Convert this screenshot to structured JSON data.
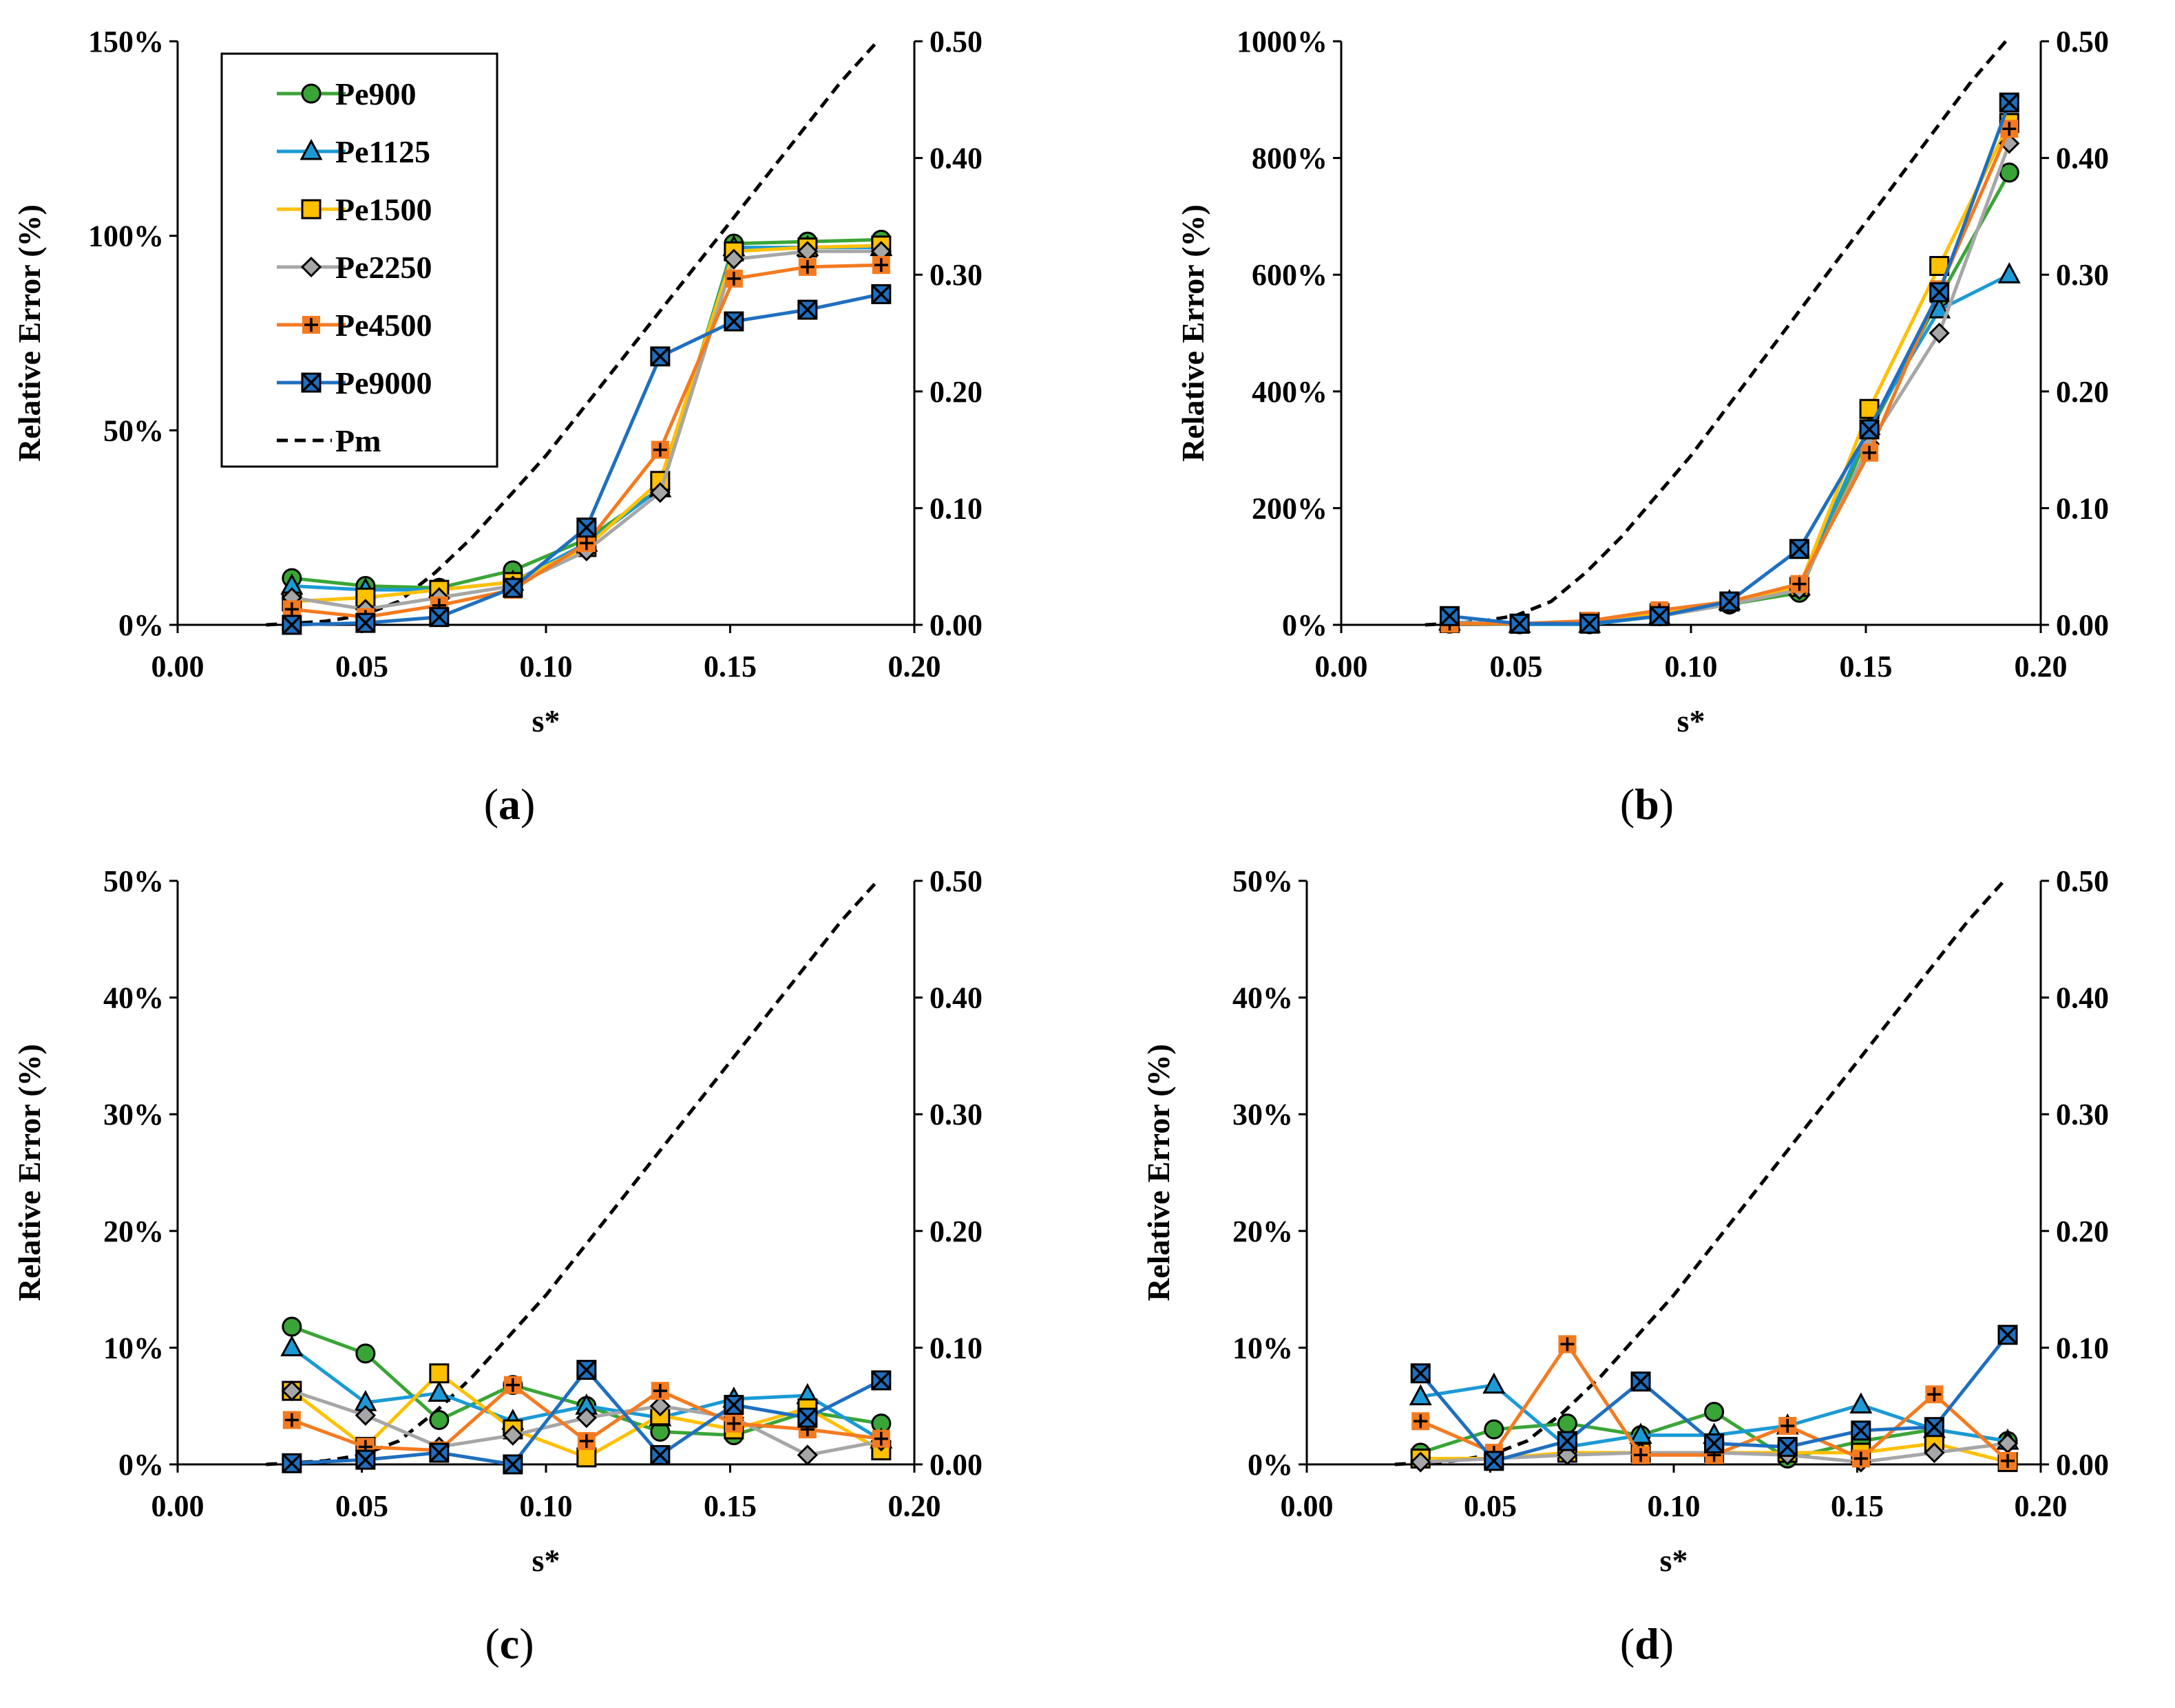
{
  "colors": {
    "Pe900": "#3aa537",
    "Pe1125": "#1b9ad6",
    "Pe1500": "#ffc000",
    "Pe2250": "#a6a6a6",
    "Pe4500": "#f47a20",
    "Pe9000": "#1f6fbf",
    "Pm": "#000000"
  },
  "legend": {
    "entries": [
      {
        "name": "Pe900",
        "marker": "circle"
      },
      {
        "name": "Pe1125",
        "marker": "triangle"
      },
      {
        "name": "Pe1500",
        "marker": "square"
      },
      {
        "name": "Pe2250",
        "marker": "diamond"
      },
      {
        "name": "Pe4500",
        "marker": "plus"
      },
      {
        "name": "Pe9000",
        "marker": "x-square"
      },
      {
        "name": "Pm",
        "marker": "dashed"
      }
    ]
  },
  "chart_data": [
    {
      "type": "line",
      "panel_label": "(a)",
      "xlabel": "s*",
      "ylabel": "Relative Error (%)",
      "xlim": [
        0.0,
        0.2
      ],
      "x_ticks": [
        "0.00",
        "0.05",
        "0.10",
        "0.15",
        "0.20"
      ],
      "ylim": [
        0,
        150
      ],
      "y_ticks": [
        "0%",
        "50%",
        "100%",
        "150%"
      ],
      "y2lim": [
        0,
        0.5
      ],
      "y2_ticks": [
        "0.00",
        "0.10",
        "0.20",
        "0.30",
        "0.40",
        "0.50"
      ],
      "x": [
        0.031,
        0.051,
        0.071,
        0.091,
        0.111,
        0.131,
        0.151,
        0.171,
        0.191
      ],
      "series": [
        {
          "name": "Pe900",
          "values": [
            12,
            10,
            9.5,
            14,
            22,
            35,
            98,
            98.5,
            99
          ]
        },
        {
          "name": "Pe1125",
          "values": [
            10,
            9,
            9,
            11,
            21,
            35,
            97,
            97,
            97
          ]
        },
        {
          "name": "Pe1500",
          "values": [
            6,
            7,
            9,
            11,
            20,
            37,
            96,
            97,
            97.5
          ]
        },
        {
          "name": "Pe2250",
          "values": [
            7,
            4,
            7,
            10,
            19,
            34,
            94,
            96,
            96
          ]
        },
        {
          "name": "Pe4500",
          "values": [
            4,
            2,
            5,
            9,
            21,
            45,
            89,
            92,
            92.5
          ]
        },
        {
          "name": "Pe9000",
          "values": [
            0,
            0.5,
            2,
            9.5,
            25,
            69,
            78,
            81,
            85
          ]
        }
      ],
      "pm": {
        "name": "Pm",
        "x": [
          0.024,
          0.03,
          0.04,
          0.05,
          0.06,
          0.07,
          0.08,
          0.09,
          0.1,
          0.11,
          0.12,
          0.13,
          0.14,
          0.15,
          0.16,
          0.17,
          0.18,
          0.19
        ],
        "values": [
          0,
          0.001,
          0.003,
          0.008,
          0.02,
          0.045,
          0.075,
          0.11,
          0.145,
          0.185,
          0.225,
          0.265,
          0.305,
          0.345,
          0.385,
          0.425,
          0.465,
          0.5
        ]
      }
    },
    {
      "type": "line",
      "panel_label": "(b)",
      "xlabel": "s*",
      "ylabel": "Relative Error (%)",
      "xlim": [
        0.0,
        0.2
      ],
      "x_ticks": [
        "0.00",
        "0.05",
        "0.10",
        "0.15",
        "0.20"
      ],
      "ylim": [
        0,
        1000
      ],
      "y_ticks": [
        "0%",
        "200%",
        "400%",
        "600%",
        "800%",
        "1000%"
      ],
      "y2lim": [
        0,
        0.5
      ],
      "y2_ticks": [
        "0.00",
        "0.10",
        "0.20",
        "0.30",
        "0.40",
        "0.50"
      ],
      "x": [
        0.031,
        0.051,
        0.071,
        0.091,
        0.111,
        0.131,
        0.151,
        0.171,
        0.191
      ],
      "series": [
        {
          "name": "Pe900",
          "values": [
            2,
            1,
            1,
            15,
            35,
            55,
            330,
            560,
            775
          ]
        },
        {
          "name": "Pe1125",
          "values": [
            5,
            1,
            1,
            15,
            40,
            65,
            340,
            540,
            600
          ]
        },
        {
          "name": "Pe1500",
          "values": [
            3,
            2,
            5,
            20,
            40,
            65,
            370,
            615,
            860
          ]
        },
        {
          "name": "Pe2250",
          "values": [
            4,
            2,
            3,
            15,
            35,
            60,
            310,
            500,
            825
          ]
        },
        {
          "name": "Pe4500",
          "values": [
            2,
            2,
            7,
            25,
            40,
            70,
            295,
            575,
            850
          ]
        },
        {
          "name": "Pe9000",
          "values": [
            15,
            2,
            2,
            15,
            40,
            130,
            335,
            570,
            895
          ]
        }
      ],
      "pm": {
        "name": "Pm",
        "x": [
          0.024,
          0.03,
          0.04,
          0.05,
          0.06,
          0.07,
          0.08,
          0.09,
          0.1,
          0.11,
          0.12,
          0.13,
          0.14,
          0.15,
          0.16,
          0.17,
          0.18,
          0.19
        ],
        "values": [
          0,
          0.001,
          0.003,
          0.008,
          0.02,
          0.045,
          0.075,
          0.11,
          0.145,
          0.185,
          0.225,
          0.265,
          0.305,
          0.345,
          0.385,
          0.425,
          0.465,
          0.5
        ]
      }
    },
    {
      "type": "line",
      "panel_label": "(c)",
      "xlabel": "s*",
      "ylabel": "Relative Error (%)",
      "xlim": [
        0.0,
        0.2
      ],
      "x_ticks": [
        "0.00",
        "0.05",
        "0.10",
        "0.15",
        "0.20"
      ],
      "ylim": [
        0,
        50
      ],
      "y_ticks": [
        "0%",
        "10%",
        "20%",
        "30%",
        "40%",
        "50%"
      ],
      "y2lim": [
        0,
        0.5
      ],
      "y2_ticks": [
        "0.00",
        "0.10",
        "0.20",
        "0.30",
        "0.40",
        "0.50"
      ],
      "x": [
        0.031,
        0.051,
        0.071,
        0.091,
        0.111,
        0.131,
        0.151,
        0.171,
        0.191
      ],
      "series": [
        {
          "name": "Pe900",
          "values": [
            11.8,
            9.5,
            3.8,
            6.8,
            5.0,
            2.8,
            2.5,
            4.5,
            3.5
          ]
        },
        {
          "name": "Pe1125",
          "values": [
            10.0,
            5.3,
            6.1,
            3.7,
            5.0,
            4.0,
            5.6,
            5.9,
            2.1
          ]
        },
        {
          "name": "Pe1500",
          "values": [
            6.3,
            1.5,
            7.8,
            3.0,
            0.6,
            4.2,
            3.0,
            4.8,
            1.2
          ]
        },
        {
          "name": "Pe2250",
          "values": [
            6.3,
            4.2,
            1.5,
            2.5,
            4.0,
            5.0,
            4.0,
            0.8,
            2.0
          ]
        },
        {
          "name": "Pe4500",
          "values": [
            3.8,
            1.5,
            1.2,
            6.8,
            2.0,
            6.3,
            3.5,
            3.0,
            2.2
          ]
        },
        {
          "name": "Pe9000",
          "values": [
            0.1,
            0.4,
            1.0,
            0.0,
            8.1,
            0.8,
            5.1,
            4.0,
            7.2
          ]
        }
      ],
      "pm": {
        "name": "Pm",
        "x": [
          0.024,
          0.03,
          0.04,
          0.05,
          0.06,
          0.07,
          0.08,
          0.09,
          0.1,
          0.11,
          0.12,
          0.13,
          0.14,
          0.15,
          0.16,
          0.17,
          0.18,
          0.19
        ],
        "values": [
          0,
          0.001,
          0.003,
          0.008,
          0.02,
          0.045,
          0.075,
          0.11,
          0.145,
          0.185,
          0.225,
          0.265,
          0.305,
          0.345,
          0.385,
          0.425,
          0.465,
          0.5
        ]
      }
    },
    {
      "type": "line",
      "panel_label": "(d)",
      "xlabel": "s*",
      "ylabel": "Relative Error (%)",
      "xlim": [
        0.0,
        0.2
      ],
      "x_ticks": [
        "0.00",
        "0.05",
        "0.10",
        "0.15",
        "0.20"
      ],
      "ylim": [
        0,
        50
      ],
      "y_ticks": [
        "0%",
        "10%",
        "20%",
        "30%",
        "40%",
        "50%"
      ],
      "y2lim": [
        0,
        0.5
      ],
      "y2_ticks": [
        "0.00",
        "0.10",
        "0.20",
        "0.30",
        "0.40",
        "0.50"
      ],
      "x": [
        0.031,
        0.051,
        0.071,
        0.091,
        0.111,
        0.131,
        0.151,
        0.171,
        0.191
      ],
      "series": [
        {
          "name": "Pe900",
          "values": [
            1.0,
            3.0,
            3.5,
            2.5,
            4.5,
            0.5,
            2.0,
            3.0,
            2.0
          ]
        },
        {
          "name": "Pe1125",
          "values": [
            5.8,
            6.8,
            1.5,
            2.5,
            2.5,
            3.3,
            5.1,
            3.0,
            2.0
          ]
        },
        {
          "name": "Pe1500",
          "values": [
            0.5,
            0.5,
            1.0,
            1.0,
            1.0,
            1.0,
            1.0,
            1.8,
            0.2
          ]
        },
        {
          "name": "Pe2250",
          "values": [
            0.2,
            0.5,
            0.8,
            1.0,
            1.0,
            0.8,
            0.2,
            1.0,
            1.8
          ]
        },
        {
          "name": "Pe4500",
          "values": [
            3.7,
            1.0,
            10.3,
            0.8,
            0.8,
            3.3,
            0.5,
            6.0,
            0.3
          ]
        },
        {
          "name": "Pe9000",
          "values": [
            7.8,
            0.3,
            2.0,
            7.1,
            1.8,
            1.5,
            2.9,
            3.2,
            11.1
          ]
        }
      ],
      "pm": {
        "name": "Pm",
        "x": [
          0.024,
          0.03,
          0.04,
          0.05,
          0.06,
          0.07,
          0.08,
          0.09,
          0.1,
          0.11,
          0.12,
          0.13,
          0.14,
          0.15,
          0.16,
          0.17,
          0.18,
          0.19
        ],
        "values": [
          0,
          0.001,
          0.003,
          0.008,
          0.02,
          0.045,
          0.075,
          0.11,
          0.145,
          0.185,
          0.225,
          0.265,
          0.305,
          0.345,
          0.385,
          0.425,
          0.465,
          0.5
        ]
      }
    }
  ]
}
